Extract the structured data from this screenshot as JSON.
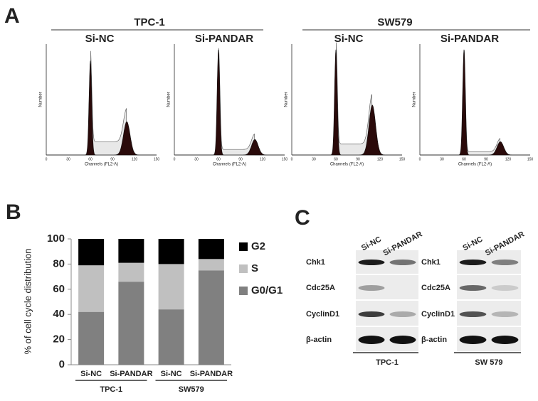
{
  "panel_labels": [
    "A",
    "B",
    "C"
  ],
  "panel_a": {
    "groups": [
      "TPC-1",
      "SW579"
    ],
    "plot_titles": [
      "Si-NC",
      "Si-PANDAR",
      "Si-NC",
      "Si-PANDAR"
    ],
    "x_axis_label": "Channels (FL2-A)",
    "y_axis_label": "Number",
    "x_ticks": [
      "0",
      "30",
      "60",
      "90",
      "120",
      "150"
    ]
  },
  "chart_data": {
    "type": "stacked-bar",
    "y_axis_label": "% of cell cycle distribution",
    "categories": [
      "Si-NC",
      "Si-PANDAR",
      "Si-NC",
      "Si-PANDAR"
    ],
    "groups": [
      "TPC-1",
      "SW579"
    ],
    "series": [
      {
        "name": "G0/G1",
        "color": "#808080",
        "values": [
          42,
          66,
          44,
          75
        ]
      },
      {
        "name": "S",
        "color": "#c0c0c0",
        "values": [
          37,
          15,
          36,
          9
        ]
      },
      {
        "name": "G2",
        "color": "#000000",
        "values": [
          21,
          19,
          20,
          16
        ]
      }
    ],
    "ylim": [
      0,
      100
    ],
    "yticks": [
      0,
      20,
      40,
      60,
      80,
      100
    ]
  },
  "panel_c": {
    "lane_labels": [
      "Si-NC",
      "Si-PANDAR"
    ],
    "row_labels": [
      "Chk1",
      "Cdc25A",
      "CyclinD1",
      "β-actin"
    ],
    "cell_lines": [
      "TPC-1",
      "SW 579"
    ]
  }
}
